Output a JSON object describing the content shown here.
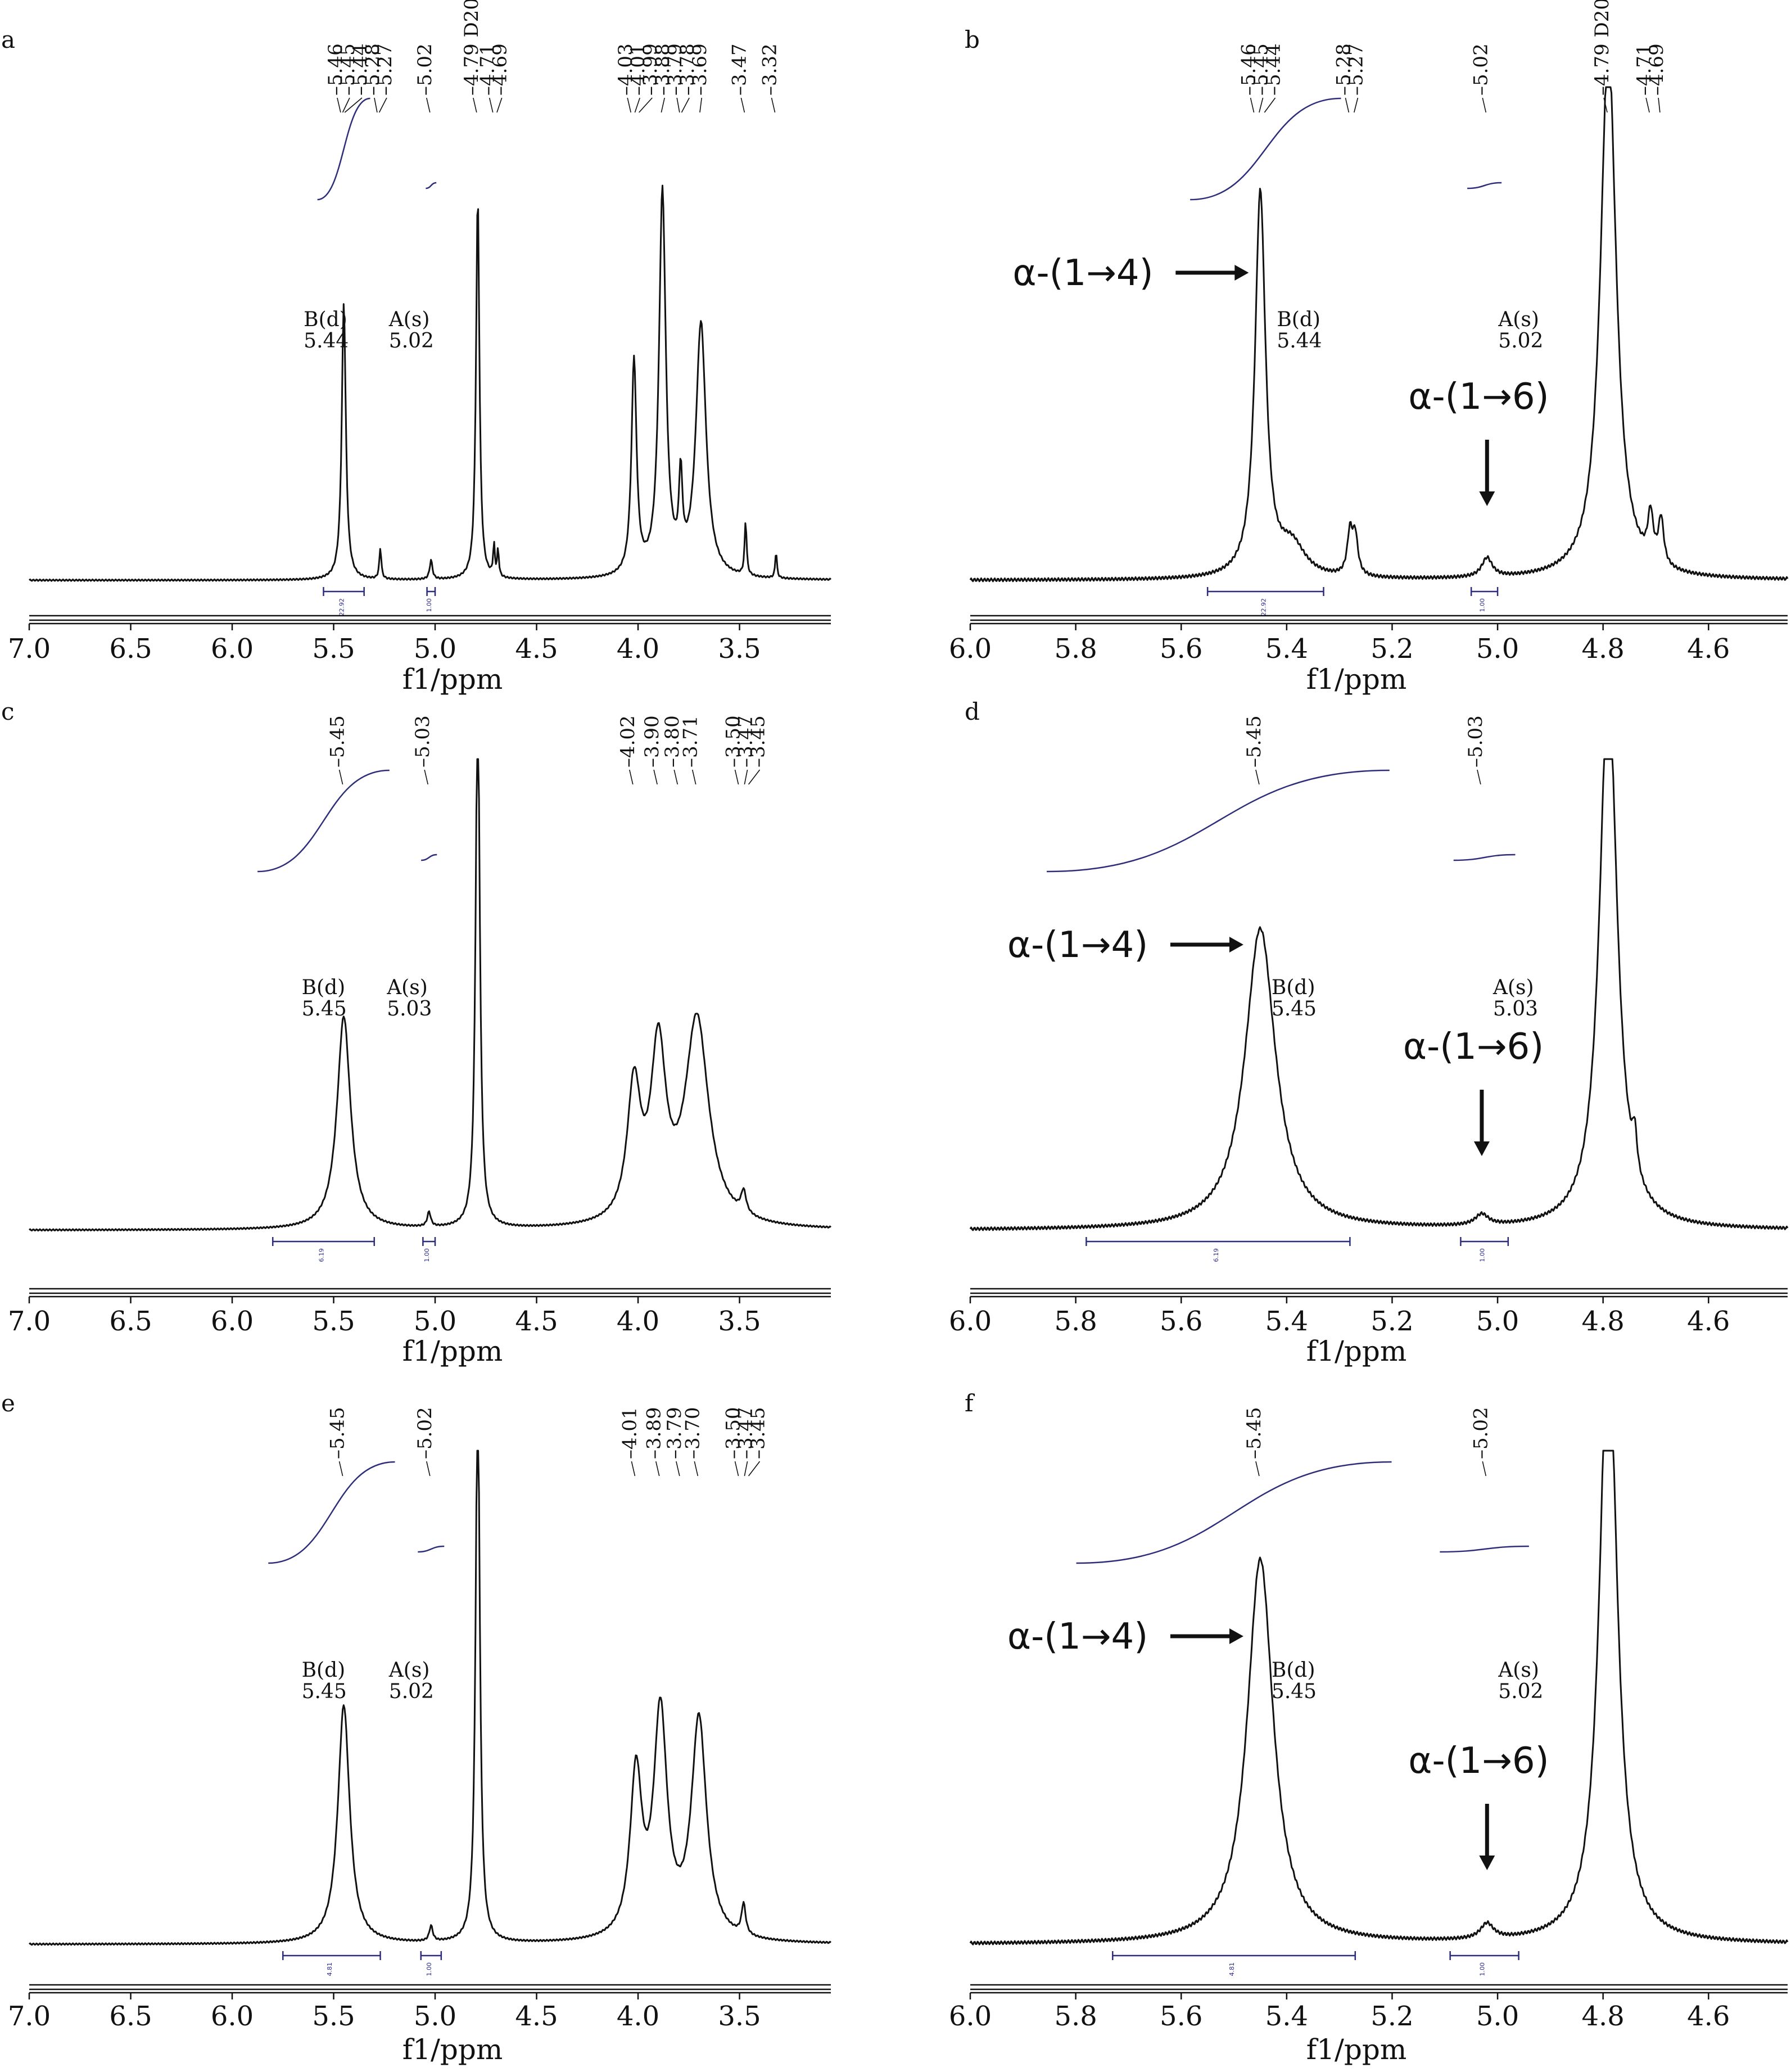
{
  "figure": {
    "xlabel": "f1/ppm"
  },
  "chart_data": [
    {
      "panel": "a",
      "type": "line",
      "xlabel": "f1/ppm",
      "xlim": [
        7.0,
        3.05
      ],
      "xticks": [
        "7.0",
        "6.5",
        "6.0",
        "5.5",
        "5.0",
        "4.5",
        "4.0",
        "3.5"
      ],
      "peak_labels": [
        "5.46",
        "5.45",
        "5.44",
        "5.28",
        "5.27",
        "5.02",
        "4.79 D20",
        "4.71",
        "4.69",
        "4.03",
        "4.01",
        "3.99",
        "3.88",
        "3.79",
        "3.78",
        "3.69",
        "3.47",
        "3.32"
      ],
      "assignments": [
        {
          "label": "B(d)",
          "value": "5.44"
        },
        {
          "label": "A(s)",
          "value": "5.02"
        }
      ],
      "integrals": [
        {
          "value": "22.92",
          "from": 5.55,
          "to": 5.35
        },
        {
          "value": "1.00",
          "from": 5.04,
          "to": 5.0
        }
      ],
      "peaks": [
        {
          "ppm": 5.45,
          "height": 0.72,
          "width": 0.012
        },
        {
          "ppm": 5.27,
          "height": 0.08,
          "width": 0.006
        },
        {
          "ppm": 5.02,
          "height": 0.05,
          "width": 0.008
        },
        {
          "ppm": 4.79,
          "height": 1.0,
          "width": 0.01
        },
        {
          "ppm": 4.71,
          "height": 0.08,
          "width": 0.005
        },
        {
          "ppm": 4.69,
          "height": 0.07,
          "width": 0.005
        },
        {
          "ppm": 4.02,
          "height": 0.56,
          "width": 0.015
        },
        {
          "ppm": 3.88,
          "height": 1.0,
          "width": 0.02
        },
        {
          "ppm": 3.79,
          "height": 0.22,
          "width": 0.01
        },
        {
          "ppm": 3.69,
          "height": 0.66,
          "width": 0.03
        },
        {
          "ppm": 3.47,
          "height": 0.14,
          "width": 0.006
        },
        {
          "ppm": 3.32,
          "height": 0.07,
          "width": 0.005
        }
      ]
    },
    {
      "panel": "b",
      "type": "line",
      "xlabel": "f1/ppm",
      "xlim": [
        6.0,
        4.45
      ],
      "xticks": [
        "6.0",
        "5.8",
        "5.6",
        "5.4",
        "5.2",
        "5.0",
        "4.8",
        "4.6"
      ],
      "peak_labels": [
        "5.46",
        "5.45",
        "5.44",
        "5.28",
        "5.27",
        "5.02",
        "4.79 D20",
        "4.71",
        "4.69"
      ],
      "assignments": [
        {
          "label": "B(d)",
          "value": "5.44"
        },
        {
          "label": "A(s)",
          "value": "5.02"
        }
      ],
      "integrals": [
        {
          "value": "22.92",
          "from": 5.55,
          "to": 5.33
        },
        {
          "value": "1.00",
          "from": 5.05,
          "to": 5.0
        }
      ],
      "annotations": [
        {
          "text": "α-(1→4)",
          "ppm": 5.44
        },
        {
          "text": "α-(1→6)",
          "ppm": 5.02
        }
      ],
      "peaks": [
        {
          "ppm": 5.45,
          "height": 1.0,
          "width": 0.012
        },
        {
          "ppm": 5.39,
          "height": 0.08,
          "width": 0.03
        },
        {
          "ppm": 5.28,
          "height": 0.11,
          "width": 0.006
        },
        {
          "ppm": 5.27,
          "height": 0.1,
          "width": 0.006
        },
        {
          "ppm": 5.02,
          "height": 0.05,
          "width": 0.012
        },
        {
          "ppm": 4.79,
          "height": 1.4,
          "width": 0.018
        },
        {
          "ppm": 4.71,
          "height": 0.12,
          "width": 0.006
        },
        {
          "ppm": 4.69,
          "height": 0.12,
          "width": 0.006
        }
      ]
    },
    {
      "panel": "c",
      "type": "line",
      "xlabel": "f1/ppm",
      "xlim": [
        7.0,
        3.05
      ],
      "xticks": [
        "7.0",
        "6.5",
        "6.0",
        "5.5",
        "5.0",
        "4.5",
        "4.0",
        "3.5"
      ],
      "peak_labels": [
        "5.45",
        "5.03",
        "4.02",
        "3.90",
        "3.80",
        "3.71",
        "3.50",
        "3.47",
        "3.45"
      ],
      "assignments": [
        {
          "label": "B(d)",
          "value": "5.45"
        },
        {
          "label": "A(s)",
          "value": "5.03"
        }
      ],
      "integrals": [
        {
          "value": "6.19",
          "from": 5.8,
          "to": 5.3
        },
        {
          "value": "1.00",
          "from": 5.06,
          "to": 5.0
        }
      ],
      "peaks": [
        {
          "ppm": 5.45,
          "height": 0.58,
          "width": 0.04
        },
        {
          "ppm": 5.03,
          "height": 0.04,
          "width": 0.01
        },
        {
          "ppm": 4.79,
          "height": 1.5,
          "width": 0.012
        },
        {
          "ppm": 4.02,
          "height": 0.36,
          "width": 0.04
        },
        {
          "ppm": 3.9,
          "height": 0.46,
          "width": 0.045
        },
        {
          "ppm": 3.71,
          "height": 0.56,
          "width": 0.07
        },
        {
          "ppm": 3.48,
          "height": 0.06,
          "width": 0.015
        }
      ]
    },
    {
      "panel": "d",
      "type": "line",
      "xlabel": "f1/ppm",
      "xlim": [
        6.0,
        4.45
      ],
      "xticks": [
        "6.0",
        "5.8",
        "5.6",
        "5.4",
        "5.2",
        "5.0",
        "4.8",
        "4.6"
      ],
      "peak_labels": [
        "5.45",
        "5.03"
      ],
      "assignments": [
        {
          "label": "B(d)",
          "value": "5.45"
        },
        {
          "label": "A(s)",
          "value": "5.03"
        }
      ],
      "integrals": [
        {
          "value": "6.19",
          "from": 5.78,
          "to": 5.28
        },
        {
          "value": "1.00",
          "from": 5.07,
          "to": 4.98
        }
      ],
      "annotations": [
        {
          "text": "α-(1→4)",
          "ppm": 5.45
        },
        {
          "text": "α-(1→6)",
          "ppm": 5.03
        }
      ],
      "peaks": [
        {
          "ppm": 5.45,
          "height": 0.82,
          "width": 0.035
        },
        {
          "ppm": 5.03,
          "height": 0.03,
          "width": 0.015
        },
        {
          "ppm": 4.79,
          "height": 1.5,
          "width": 0.02
        },
        {
          "ppm": 4.74,
          "height": 0.1,
          "width": 0.005
        }
      ]
    },
    {
      "panel": "e",
      "type": "line",
      "xlabel": "f1/ppm",
      "xlim": [
        7.0,
        3.05
      ],
      "xticks": [
        "7.0",
        "6.5",
        "6.0",
        "5.5",
        "5.0",
        "4.5",
        "4.0",
        "3.5"
      ],
      "peak_labels": [
        "5.45",
        "5.02",
        "4.01",
        "3.89",
        "3.79",
        "3.70",
        "3.50",
        "3.47",
        "3.45"
      ],
      "assignments": [
        {
          "label": "B(d)",
          "value": "5.45"
        },
        {
          "label": "A(s)",
          "value": "5.02"
        }
      ],
      "integrals": [
        {
          "value": "4.81",
          "from": 5.75,
          "to": 5.27
        },
        {
          "value": "1.00",
          "from": 5.07,
          "to": 4.97
        }
      ],
      "peaks": [
        {
          "ppm": 5.45,
          "height": 0.62,
          "width": 0.035
        },
        {
          "ppm": 5.02,
          "height": 0.04,
          "width": 0.01
        },
        {
          "ppm": 4.79,
          "height": 1.5,
          "width": 0.012
        },
        {
          "ppm": 4.01,
          "height": 0.42,
          "width": 0.035
        },
        {
          "ppm": 3.89,
          "height": 0.58,
          "width": 0.04
        },
        {
          "ppm": 3.7,
          "height": 0.57,
          "width": 0.045
        },
        {
          "ppm": 3.48,
          "height": 0.08,
          "width": 0.012
        }
      ]
    },
    {
      "panel": "f",
      "type": "line",
      "xlabel": "f1/ppm",
      "xlim": [
        6.0,
        4.45
      ],
      "xticks": [
        "6.0",
        "5.8",
        "5.6",
        "5.4",
        "5.2",
        "5.0",
        "4.8",
        "4.6"
      ],
      "peak_labels": [
        "5.45",
        "5.02"
      ],
      "assignments": [
        {
          "label": "B(d)",
          "value": "5.45"
        },
        {
          "label": "A(s)",
          "value": "5.02"
        }
      ],
      "integrals": [
        {
          "value": "4.81",
          "from": 5.73,
          "to": 5.27
        },
        {
          "value": "1.00",
          "from": 5.09,
          "to": 4.96
        }
      ],
      "annotations": [
        {
          "text": "α-(1→4)",
          "ppm": 5.45
        },
        {
          "text": "α-(1→6)",
          "ppm": 5.02
        }
      ],
      "peaks": [
        {
          "ppm": 5.45,
          "height": 1.0,
          "width": 0.03
        },
        {
          "ppm": 5.02,
          "height": 0.04,
          "width": 0.015
        },
        {
          "ppm": 4.79,
          "height": 1.6,
          "width": 0.02
        }
      ]
    }
  ]
}
